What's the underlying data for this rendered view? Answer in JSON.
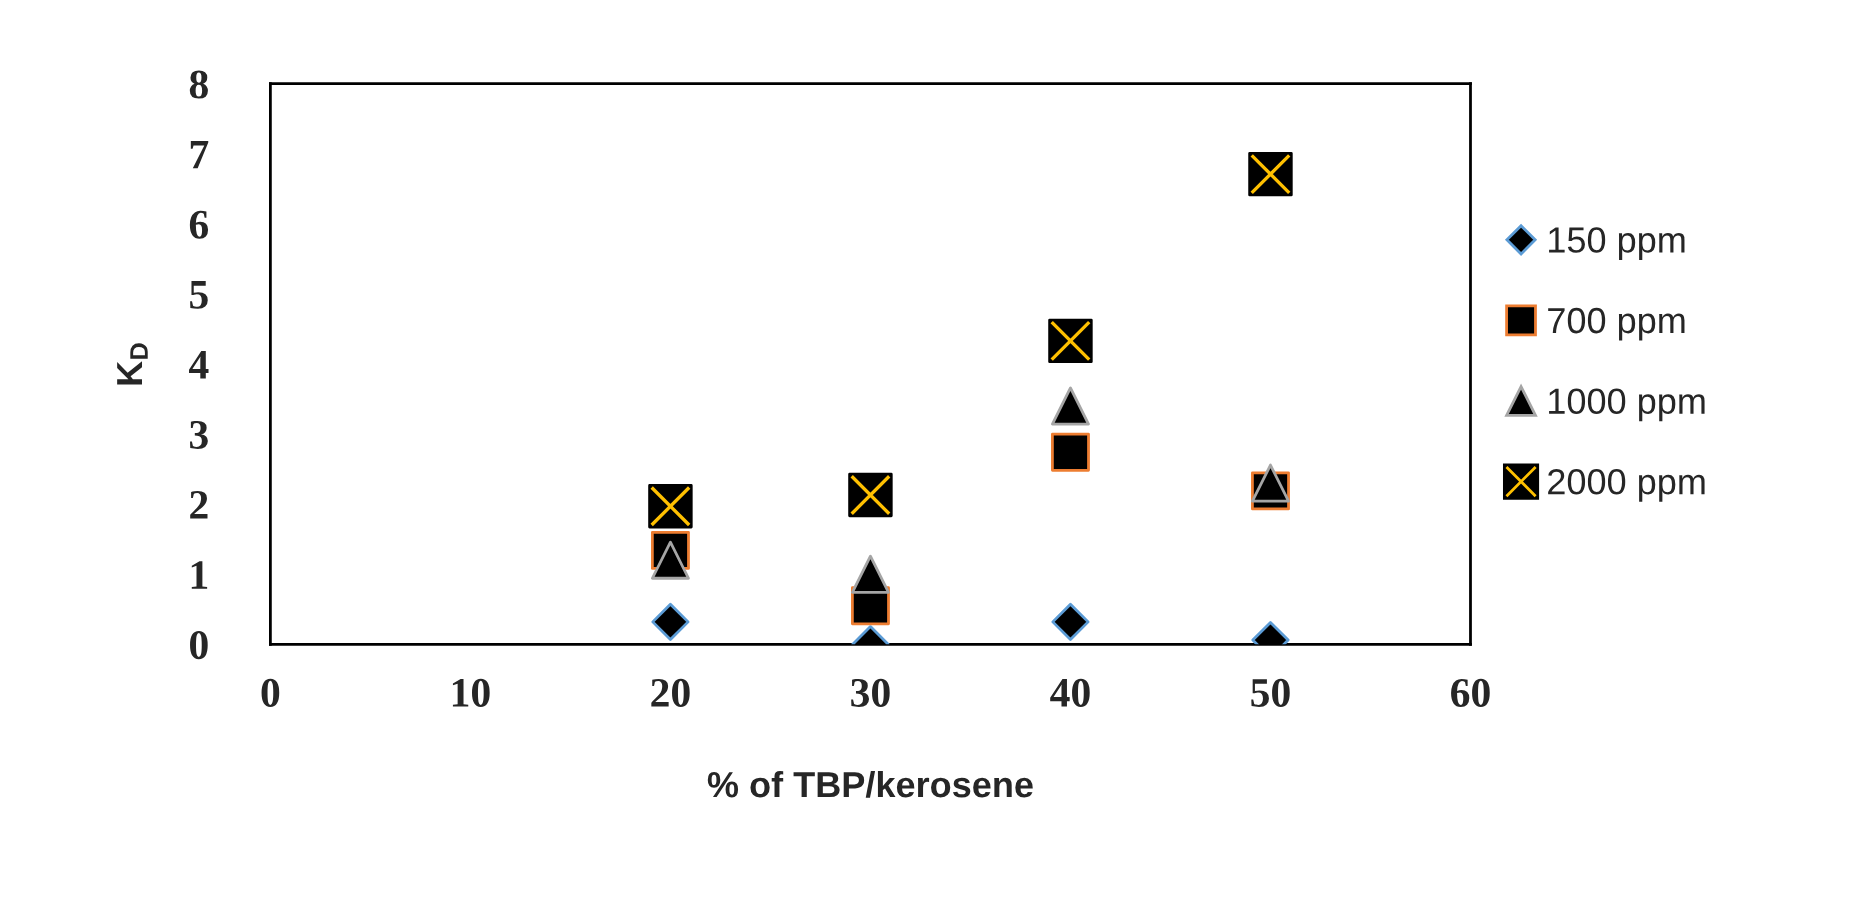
{
  "chart_data": {
    "type": "scatter",
    "xlabel": "% of TBP/kerosene",
    "ylabel": "K$_{D}$",
    "x": [
      20,
      30,
      40,
      50
    ],
    "series": [
      {
        "name": "150 ppm",
        "color": "#000000",
        "marker": "diamond",
        "values": [
          0.32,
          0.0,
          0.32,
          0.06
        ]
      },
      {
        "name": "700 ppm",
        "color": "#000000",
        "marker": "square",
        "values": [
          1.34,
          0.55,
          2.74,
          2.19
        ]
      },
      {
        "name": "1000 ppm",
        "color": "#000000",
        "marker": "triangle",
        "values": [
          1.2,
          1.0,
          3.4,
          2.3
        ]
      },
      {
        "name": "2000 ppm",
        "color": "#000000",
        "marker": "square",
        "values": [
          1.97,
          2.13,
          4.33,
          6.71
        ]
      }
    ],
    "xlim": [
      0,
      60
    ],
    "xticks": [
      0,
      10,
      20,
      30,
      40,
      50,
      60
    ],
    "ylim": [
      0,
      8
    ],
    "yticks": [
      0,
      1,
      2,
      3,
      4,
      5,
      6,
      7,
      8
    ],
    "grid": false,
    "legend": "right"
  }
}
